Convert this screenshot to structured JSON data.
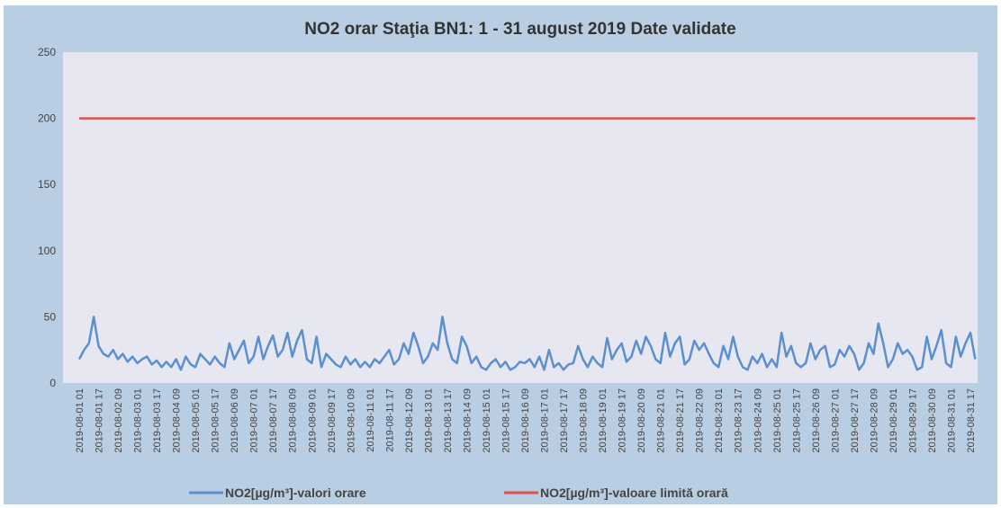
{
  "chart_data": {
    "type": "line",
    "title": "NO2 orar Staţia BN1: 1 - 31 august 2019 Date validate",
    "categories": [
      "2019-08-01 01",
      null,
      null,
      null,
      "2019-08-01 17",
      null,
      null,
      null,
      "2019-08-02 09",
      null,
      null,
      null,
      "2019-08-03 01",
      null,
      null,
      null,
      "2019-08-03 17",
      null,
      null,
      null,
      "2019-08-04 09",
      null,
      null,
      null,
      "2019-08-05 01",
      null,
      null,
      null,
      "2019-08-05 17",
      null,
      null,
      null,
      "2019-08-06 09",
      null,
      null,
      null,
      "2019-08-07 01",
      null,
      null,
      null,
      "2019-08-07 17",
      null,
      null,
      null,
      "2019-08-08 09",
      null,
      null,
      null,
      "2019-08-09 01",
      null,
      null,
      null,
      "2019-08-09 17",
      null,
      null,
      null,
      "2019-08-10 09",
      null,
      null,
      null,
      "2019-08-11 01",
      null,
      null,
      null,
      "2019-08-11 17",
      null,
      null,
      null,
      "2019-08-12 09",
      null,
      null,
      null,
      "2019-08-13 01",
      null,
      null,
      null,
      "2019-08-13 17",
      null,
      null,
      null,
      "2019-08-14 09",
      null,
      null,
      null,
      "2019-08-15 01",
      null,
      null,
      null,
      "2019-08-15 17",
      null,
      null,
      null,
      "2019-08-16 09",
      null,
      null,
      null,
      "2019-08-17 01",
      null,
      null,
      null,
      "2019-08-17 17",
      null,
      null,
      null,
      "2019-08-18 09",
      null,
      null,
      null,
      "2019-08-19 01",
      null,
      null,
      null,
      "2019-08-19 17",
      null,
      null,
      null,
      "2019-08-20 09",
      null,
      null,
      null,
      "2019-08-21 01",
      null,
      null,
      null,
      "2019-08-21 17",
      null,
      null,
      null,
      "2019-08-22 09",
      null,
      null,
      null,
      "2019-08-23 01",
      null,
      null,
      null,
      "2019-08-23 17",
      null,
      null,
      null,
      "2019-08-24 09",
      null,
      null,
      null,
      "2019-08-25 01",
      null,
      null,
      null,
      "2019-08-25 17",
      null,
      null,
      null,
      "2019-08-26 09",
      null,
      null,
      null,
      "2019-08-27 01",
      null,
      null,
      null,
      "2019-08-27 17",
      null,
      null,
      null,
      "2019-08-28 09",
      null,
      null,
      null,
      "2019-08-29 01",
      null,
      null,
      null,
      "2019-08-29 17",
      null,
      null,
      null,
      "2019-08-30 09",
      null,
      null,
      null,
      "2019-08-31 01",
      null,
      null,
      null,
      "2019-08-31 17",
      null
    ],
    "series": [
      {
        "name": "NO2[µg/m³]-valori orare",
        "color": "#5b8fd0",
        "values": [
          18,
          25,
          30,
          50,
          28,
          22,
          20,
          25,
          18,
          22,
          16,
          20,
          15,
          18,
          20,
          14,
          17,
          12,
          16,
          12,
          18,
          10,
          20,
          14,
          12,
          22,
          18,
          14,
          20,
          15,
          12,
          30,
          18,
          25,
          32,
          15,
          20,
          35,
          18,
          28,
          36,
          20,
          25,
          38,
          20,
          32,
          40,
          18,
          15,
          35,
          12,
          22,
          18,
          14,
          12,
          20,
          14,
          18,
          12,
          16,
          12,
          18,
          15,
          20,
          25,
          14,
          18,
          30,
          22,
          38,
          28,
          15,
          20,
          30,
          25,
          50,
          30,
          18,
          15,
          35,
          28,
          15,
          20,
          12,
          10,
          15,
          18,
          12,
          16,
          10,
          12,
          16,
          15,
          18,
          12,
          20,
          10,
          25,
          12,
          15,
          10,
          14,
          15,
          28,
          18,
          12,
          20,
          15,
          12,
          34,
          18,
          25,
          30,
          16,
          20,
          32,
          22,
          35,
          28,
          18,
          15,
          38,
          20,
          30,
          35,
          14,
          18,
          32,
          25,
          30,
          22,
          15,
          12,
          28,
          18,
          35,
          20,
          12,
          10,
          20,
          15,
          22,
          12,
          18,
          12,
          38,
          20,
          28,
          15,
          12,
          15,
          30,
          18,
          25,
          28,
          12,
          14,
          25,
          20,
          28,
          22,
          10,
          15,
          30,
          22,
          45,
          30,
          12,
          18,
          30,
          22,
          25,
          20,
          10,
          12,
          35,
          18,
          28,
          40,
          15,
          12,
          35,
          20,
          30,
          38,
          18
        ]
      },
      {
        "name": "NO2[µg/m³]-valoare limită orară",
        "color": "#e0524a",
        "values": [
          200,
          200,
          200,
          200,
          200,
          200,
          200,
          200,
          200,
          200,
          200,
          200,
          200,
          200,
          200,
          200,
          200,
          200,
          200,
          200,
          200,
          200,
          200,
          200,
          200,
          200,
          200,
          200,
          200,
          200,
          200,
          200,
          200,
          200,
          200,
          200,
          200,
          200,
          200,
          200,
          200,
          200,
          200,
          200,
          200,
          200,
          200,
          200,
          200,
          200,
          200,
          200,
          200,
          200,
          200,
          200,
          200,
          200,
          200,
          200,
          200,
          200,
          200,
          200,
          200,
          200,
          200,
          200,
          200,
          200,
          200,
          200,
          200,
          200,
          200,
          200,
          200,
          200,
          200,
          200,
          200,
          200,
          200,
          200,
          200,
          200,
          200,
          200,
          200,
          200,
          200,
          200,
          200,
          200,
          200,
          200,
          200,
          200,
          200,
          200,
          200,
          200,
          200,
          200,
          200,
          200,
          200,
          200,
          200,
          200,
          200,
          200,
          200,
          200,
          200,
          200,
          200,
          200,
          200,
          200,
          200,
          200,
          200,
          200,
          200,
          200,
          200,
          200,
          200,
          200,
          200,
          200,
          200,
          200,
          200,
          200,
          200,
          200,
          200,
          200,
          200,
          200,
          200,
          200,
          200,
          200,
          200,
          200,
          200,
          200,
          200,
          200,
          200,
          200,
          200,
          200,
          200,
          200,
          200,
          200,
          200,
          200,
          200,
          200,
          200,
          200,
          200,
          200,
          200,
          200,
          200,
          200,
          200,
          200,
          200,
          200,
          200,
          200,
          200,
          200,
          200,
          200,
          200,
          200,
          200,
          200
        ]
      }
    ],
    "ylim": [
      0,
      250
    ],
    "yticks": [
      0,
      50,
      100,
      150,
      200,
      250
    ],
    "legend": "bottom"
  }
}
